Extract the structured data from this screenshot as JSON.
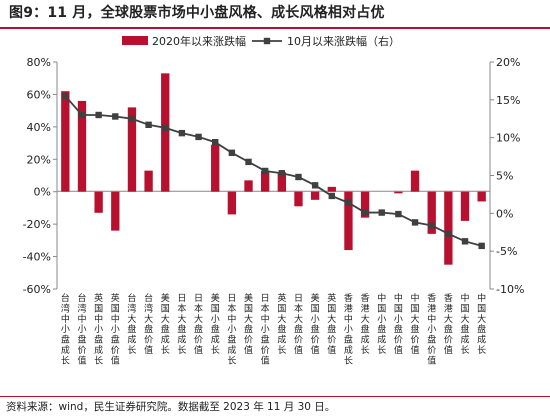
{
  "header": {
    "title": "图9：11 月，全球股票市场中小盘风格、成长风格相对占优"
  },
  "footer": {
    "source": "资料来源：wind，民生证券研究院。数据截至 2023 年 11 月 30 日。"
  },
  "colors": {
    "bar": "#b8102f",
    "line": "#404040"
  },
  "chart_data": {
    "type": "bar",
    "categories": [
      "台湾中小盘成长",
      "台湾中小盘价值",
      "英国中小盘成长",
      "英国中小盘价值",
      "台湾大盘成长",
      "台湾大盘价值",
      "美国大盘成长",
      "日本大盘成长",
      "日本大盘价值",
      "美国小盘成长",
      "日本中小盘成长",
      "美国大盘价值",
      "日本中小盘价值",
      "英国大盘成长",
      "日本大盘价值",
      "美国小盘价值",
      "英国大盘价值",
      "香港中小盘成长",
      "香港大盘成长",
      "中国小盘成长",
      "中国小盘价值",
      "中国大盘价值",
      "香港中小盘价值",
      "香港大盘价值",
      "中国大盘成长",
      "中国大盘成长"
    ],
    "series": [
      {
        "name": "2020年以来涨跌幅",
        "type": "bar",
        "axis": "left",
        "values": [
          62,
          56,
          -13,
          -24,
          52,
          13,
          73,
          0,
          0,
          29,
          -14,
          7,
          13,
          12,
          -9,
          -5,
          3,
          -36,
          -16,
          0,
          -1,
          13,
          -26,
          -45,
          -18,
          -6
        ]
      },
      {
        "name": "10月以来涨跌幅（右）",
        "type": "line",
        "axis": "right",
        "values": [
          15.5,
          13,
          13,
          12.8,
          12.5,
          11.7,
          11.3,
          10.6,
          10.1,
          9.4,
          8,
          6.8,
          5.6,
          5.3,
          4.8,
          3.7,
          2.3,
          1.4,
          0.1,
          0.1,
          -0.1,
          -1.2,
          -1.6,
          -2.7,
          -3.7,
          -4.3
        ]
      }
    ],
    "yleft": {
      "lim": [
        -60,
        80
      ],
      "ticks": [
        "-60%",
        "-40%",
        "-20%",
        "0%",
        "20%",
        "40%",
        "60%",
        "80%"
      ]
    },
    "yright": {
      "lim": [
        -10,
        20
      ],
      "ticks": [
        "-10%",
        "-5%",
        "0%",
        "5%",
        "10%",
        "15%",
        "20%"
      ]
    },
    "legend": {
      "placement": "top"
    },
    "grid": false
  }
}
